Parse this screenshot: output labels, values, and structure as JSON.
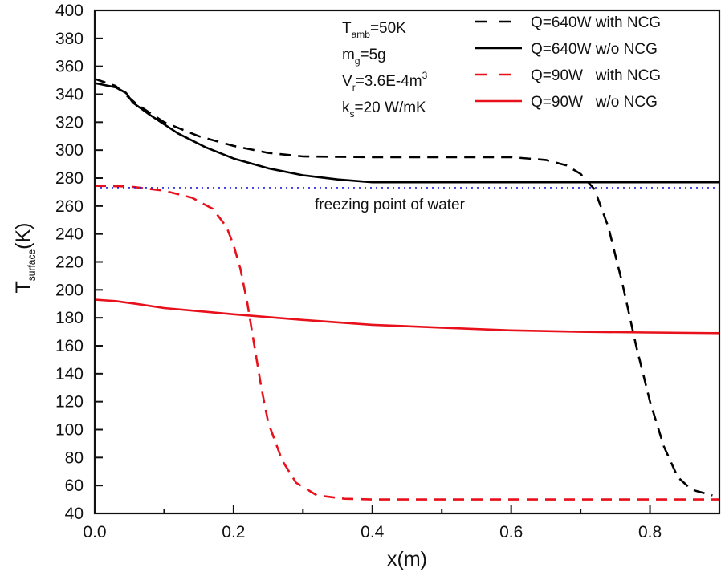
{
  "chart_data": {
    "type": "line",
    "title": "",
    "xlabel": "x(m)",
    "ylabel": {
      "main": "T",
      "subscript": "surface",
      "unit": "(K)"
    },
    "xlim": [
      0.0,
      0.9
    ],
    "ylim": [
      40,
      400
    ],
    "xticks": [
      0.0,
      0.2,
      0.4,
      0.6,
      0.8
    ],
    "xtick_labels": [
      "0.0",
      "0.2",
      "0.4",
      "0.6",
      "0.8"
    ],
    "xminor_ticks": [
      0.1,
      0.3,
      0.5,
      0.7
    ],
    "yticks": [
      40,
      60,
      80,
      100,
      120,
      140,
      160,
      180,
      200,
      220,
      240,
      260,
      280,
      300,
      320,
      340,
      360,
      380,
      400
    ],
    "ytick_labels": [
      "40",
      "60",
      "80",
      "100",
      "120",
      "140",
      "160",
      "180",
      "200",
      "220",
      "240",
      "260",
      "280",
      "300",
      "320",
      "340",
      "360",
      "380",
      "400"
    ],
    "grid": false,
    "legend_position": "top-right",
    "series": [
      {
        "name": "Q=640W with NCG",
        "color": "#000000",
        "style": "dashed",
        "x": [
          0,
          0.03,
          0.06,
          0.1,
          0.15,
          0.2,
          0.25,
          0.3,
          0.4,
          0.6,
          0.65,
          0.68,
          0.7,
          0.72,
          0.74,
          0.76,
          0.78,
          0.8,
          0.82,
          0.84,
          0.86,
          0.89
        ],
        "y": [
          351,
          346,
          333,
          320,
          310,
          303,
          298,
          295.5,
          295,
          295,
          293,
          289,
          283,
          272,
          245,
          205,
          160,
          120,
          88,
          66,
          57,
          53
        ]
      },
      {
        "name": "Q=640W w/o NCG",
        "color": "#000000",
        "style": "solid",
        "x": [
          0,
          0.03,
          0.045,
          0.055,
          0.08,
          0.12,
          0.16,
          0.2,
          0.25,
          0.3,
          0.35,
          0.4,
          0.9
        ],
        "y": [
          348,
          345,
          341,
          334,
          325,
          312,
          302,
          294,
          287,
          282,
          279,
          277,
          277
        ]
      },
      {
        "name": "Q=90W   with NCG",
        "color": "#e8101a",
        "style": "dashed",
        "x": [
          0,
          0.05,
          0.1,
          0.14,
          0.17,
          0.19,
          0.2,
          0.21,
          0.22,
          0.23,
          0.24,
          0.25,
          0.27,
          0.29,
          0.32,
          0.36,
          0.4,
          0.9
        ],
        "y": [
          274.5,
          274,
          271,
          266,
          258,
          245,
          232,
          215,
          190,
          160,
          130,
          105,
          78,
          62,
          53,
          50.5,
          50,
          50
        ]
      },
      {
        "name": "Q=90W   w/o NCG",
        "color": "#e8101a",
        "style": "solid",
        "x": [
          0,
          0.03,
          0.06,
          0.1,
          0.2,
          0.3,
          0.4,
          0.5,
          0.6,
          0.7,
          0.8,
          0.9
        ],
        "y": [
          193,
          192,
          190,
          187,
          182.5,
          178.5,
          175,
          173,
          171,
          170,
          169.5,
          169
        ]
      }
    ],
    "reference_lines": [
      {
        "name": "freezing point of water",
        "y": 273.15,
        "color": "#2020e0",
        "style": "dotted",
        "label": "freezing point of water"
      }
    ],
    "annotations": [
      {
        "main": "T",
        "sub": "amb",
        "rest": "=50K",
        "sup": ""
      },
      {
        "main": "m",
        "sub": "g",
        "rest": "=5g",
        "sup": ""
      },
      {
        "main": "V",
        "sub": "r",
        "rest": "=3.6E-4m",
        "sup": "3"
      },
      {
        "main": "k",
        "sub": "s",
        "rest": "=20 W/mK",
        "sup": ""
      }
    ]
  }
}
